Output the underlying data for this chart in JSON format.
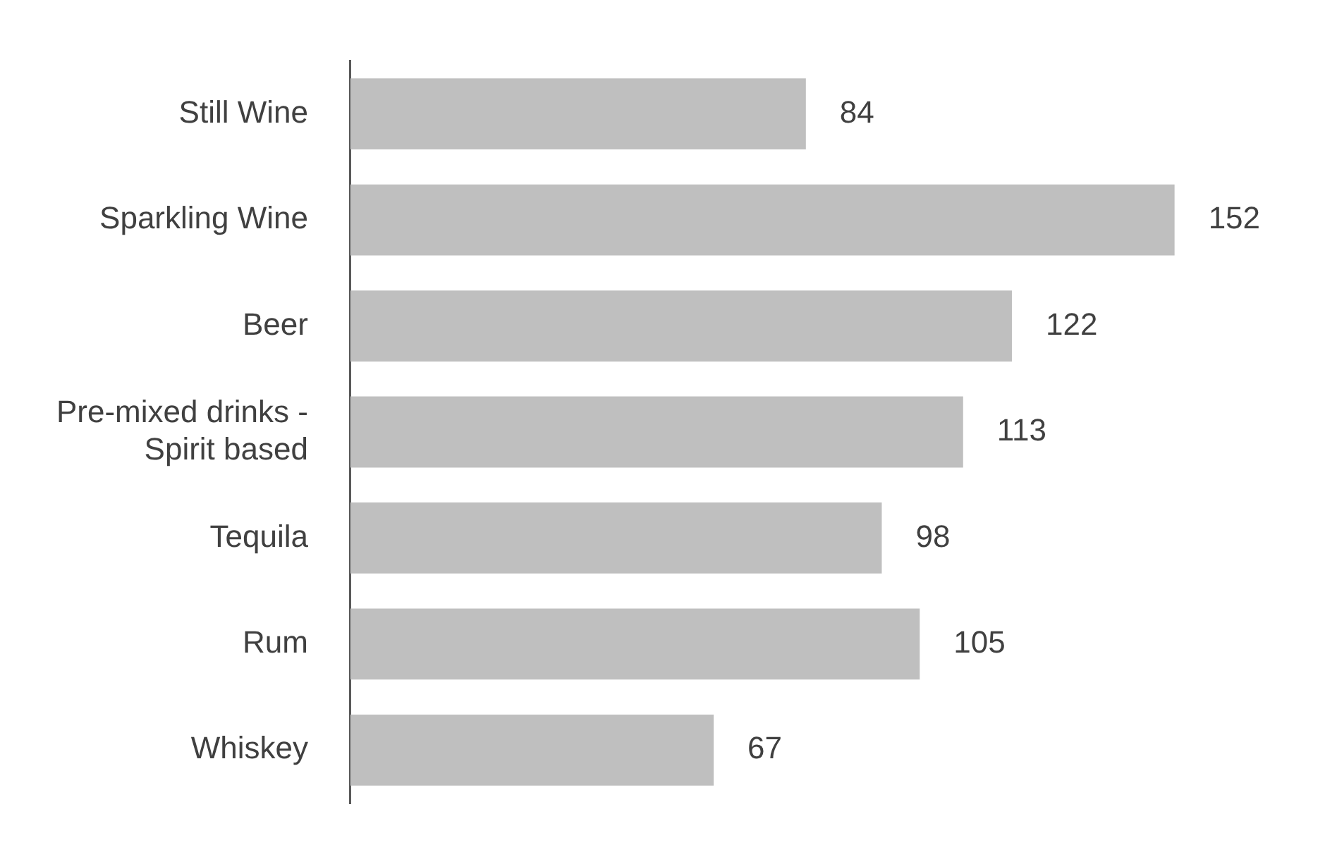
{
  "chart_data": {
    "type": "bar",
    "orientation": "horizontal",
    "categories": [
      "Still Wine",
      "Sparkling Wine",
      "Beer",
      "Pre-mixed drinks - Spirit based",
      "Tequila",
      "Rum",
      "Whiskey"
    ],
    "values": [
      84,
      152,
      122,
      113,
      98,
      105,
      67
    ],
    "color": "#bfbfbf",
    "data_labels": true,
    "legend": false
  }
}
